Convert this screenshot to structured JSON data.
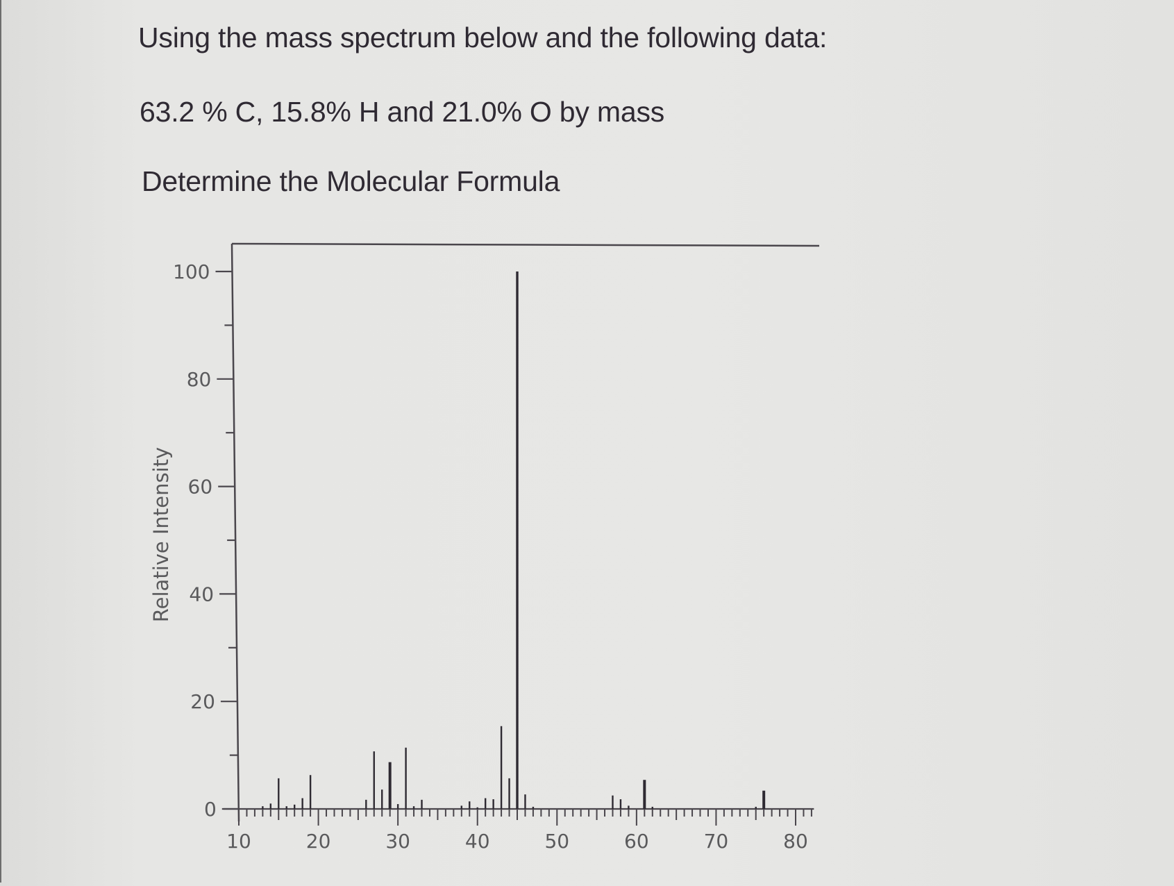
{
  "question": {
    "line_1": "Using the mass spectrum below and the following data:",
    "line_2": "63.2 % C, 15.8% H and 21.0% O  by mass",
    "line_3": "Determine the Molecular Formula"
  },
  "colors": {
    "background": "#e3e3e1",
    "text": "#2f2a33",
    "axis": "#4a464c",
    "peak": "#2e2a32",
    "tick_label": "#5a5a5c"
  },
  "chart_data": {
    "type": "bar",
    "title": "",
    "xlabel": "",
    "ylabel": "Relative Intensity",
    "xlim": [
      10,
      82
    ],
    "ylim": [
      0,
      100
    ],
    "x_ticks": [
      10,
      20,
      30,
      40,
      50,
      60,
      70,
      80
    ],
    "y_ticks": [
      0,
      20,
      40,
      60,
      80,
      100
    ],
    "grid": false,
    "legend": null,
    "x": [
      13,
      14,
      15,
      16,
      17,
      18,
      19,
      26,
      27,
      28,
      29,
      30,
      31,
      32,
      33,
      38,
      39,
      40,
      41,
      42,
      43,
      44,
      45,
      46,
      47,
      57,
      58,
      59,
      61,
      62,
      75,
      76
    ],
    "values": [
      0.5,
      1.0,
      5.7,
      0.5,
      0.8,
      2.0,
      6.3,
      1.7,
      10.7,
      3.6,
      8.7,
      0.9,
      11.4,
      0.5,
      1.7,
      0.6,
      1.4,
      0.3,
      2.0,
      1.8,
      15.4,
      5.7,
      100,
      2.7,
      0.4,
      2.5,
      1.8,
      0.6,
      5.4,
      0.4,
      0.4,
      3.4
    ],
    "base_peak": {
      "mz": 45,
      "intensity": 100
    }
  }
}
